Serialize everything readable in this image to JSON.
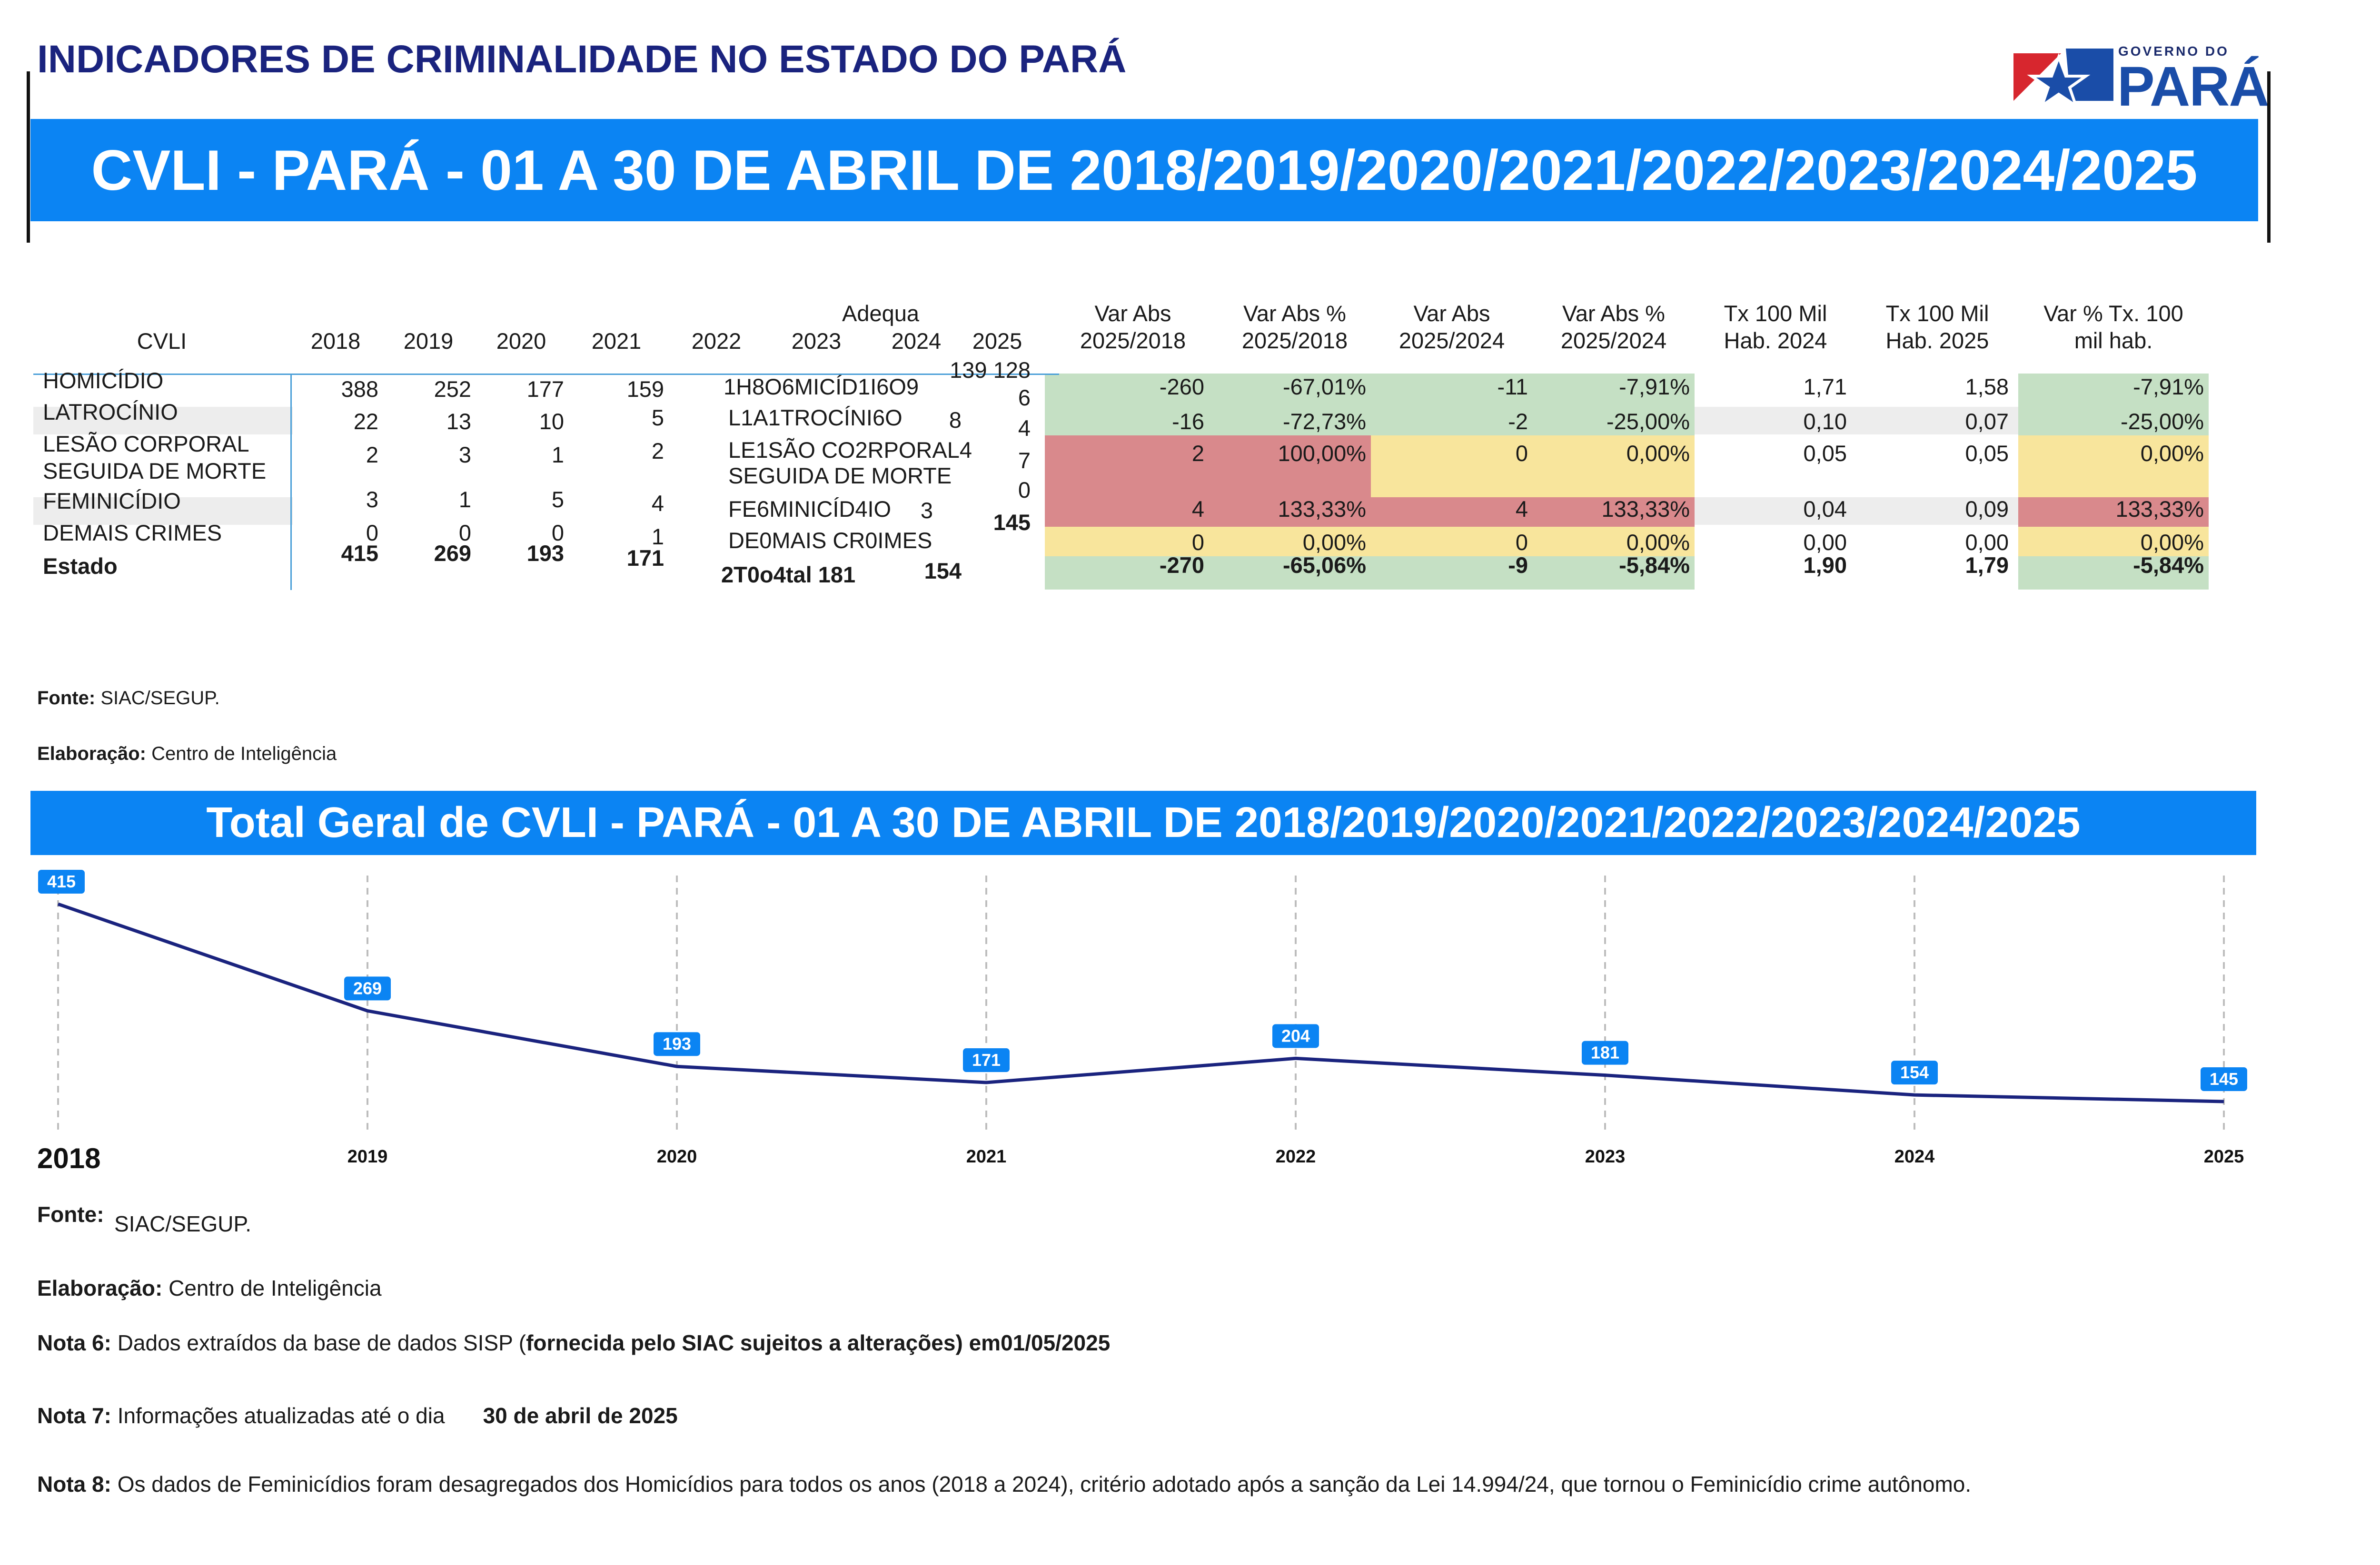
{
  "header": {
    "title": "INDICADORES DE CRIMINALIDADE NO ESTADO DO PARÁ",
    "logo_top": "GOVERNO DO",
    "logo_main": "PARÁ",
    "banner": "CVLI - PARÁ - 01 A 30 DE ABRIL DE 2018/2019/2020/2021/2022/2023/2024/2025"
  },
  "table": {
    "adequa_label": "Adequa",
    "columns": [
      "CVLI",
      "2018",
      "2019",
      "2020",
      "2021",
      "2022",
      "2023",
      "2024",
      "2025"
    ],
    "var_headers": [
      [
        "Var Abs",
        "2025/2018"
      ],
      [
        "Var Abs %",
        "2025/2018"
      ],
      [
        "Var Abs",
        "2025/2024"
      ],
      [
        "Var Abs %",
        "2025/2024"
      ],
      [
        "Tx 100 Mil",
        "Hab. 2024"
      ],
      [
        "Tx 100 Mil",
        "Hab. 2025"
      ],
      [
        "Var % Tx. 100",
        "mil hab."
      ]
    ],
    "rows": [
      {
        "label": "HOMICÍDIO",
        "label2": "",
        "y2018": "388",
        "y2019": "252",
        "y2020": "177",
        "y2021": "159",
        "garbled": "1H8O6MICÍD1I6O9",
        "extra": "139 128",
        "last": "6",
        "var": [
          "-260",
          "-67,01%",
          "-11",
          "-7,91%",
          "1,71",
          "1,58",
          "-7,91%"
        ]
      },
      {
        "label": "LATROCÍNIO",
        "label2": "",
        "y2018": "22",
        "y2019": "13",
        "y2020": "10",
        "y2021": "5",
        "garbled": "L1A1TROCÍNI6O",
        "extra": "8",
        "last": "4",
        "var": [
          "-16",
          "-72,73%",
          "-2",
          "-25,00%",
          "0,10",
          "0,07",
          "-25,00%"
        ]
      },
      {
        "label": "LESÃO CORPORAL",
        "label2": "SEGUIDA DE MORTE",
        "y2018": "2",
        "y2019": "3",
        "y2020": "1",
        "y2021": "2",
        "garbled": "LE1SÃO CO2RPORAL4",
        "garbled2": "SEGUIDA DE MORTE",
        "extra": "",
        "last": "7",
        "var": [
          "2",
          "100,00%",
          "0",
          "0,00%",
          "0,05",
          "0,05",
          "0,00%"
        ]
      },
      {
        "label": "FEMINICÍDIO",
        "label2": "",
        "y2018": "3",
        "y2019": "1",
        "y2020": "5",
        "y2021": "4",
        "garbled": "FE6MINICÍD4IO",
        "extra": "3",
        "last": "0",
        "var": [
          "4",
          "133,33%",
          "4",
          "133,33%",
          "0,04",
          "0,09",
          "133,33%"
        ]
      },
      {
        "label": "DEMAIS CRIMES",
        "label2": "",
        "y2018": "0",
        "y2019": "0",
        "y2020": "0",
        "y2021": "1",
        "garbled": "DE0MAIS CR0IMES",
        "extra": "",
        "last": "145",
        "var": [
          "0",
          "0,00%",
          "0",
          "0,00%",
          "0,00",
          "0,00",
          "0,00%"
        ]
      }
    ],
    "total": {
      "label": "Estado",
      "y2018": "415",
      "y2019": "269",
      "y2020": "193",
      "y2021": "171",
      "garbled": "2T0o4tal 181",
      "y2024": "154",
      "var": [
        "-270",
        "-65,06%",
        "-9",
        "-5,84%",
        "1,90",
        "1,79",
        "-5,84%"
      ]
    }
  },
  "sources1": {
    "fonte_label": "Fonte:",
    "fonte_value": "SIAC/SEGUP.",
    "elab_label": "Elaboração:",
    "elab_value": "Centro de Inteligência"
  },
  "chart_banner": "Total Geral de CVLI - PARÁ - 01 A 30 DE ABRIL DE 2018/2019/2020/2021/2022/2023/2024/2025",
  "chart_data": {
    "type": "line",
    "title": "Total Geral de CVLI - PARÁ - 01 A 30 DE ABRIL DE 2018/2019/2020/2021/2022/2023/2024/2025",
    "x": [
      "2018",
      "2019",
      "2020",
      "2021",
      "2022",
      "2023",
      "2024",
      "2025"
    ],
    "values": [
      415,
      269,
      193,
      171,
      204,
      181,
      154,
      145
    ],
    "grid": "vertical dashed",
    "colors": {
      "line": "#1a237e",
      "label": "#0b84f3"
    }
  },
  "notes": {
    "fonte_label": "Fonte:",
    "fonte_value": "SIAC/SEGUP.",
    "elab_label": "Elaboração:",
    "elab_value": "Centro de Inteligência",
    "n6_label": "Nota 6:",
    "n6_text": "Dados extraídos da base de dados SISP (",
    "n6_bold": "fornecida pelo SIAC sujeitos a alterações",
    "n6_end": ") em01/05/2025",
    "n7_label": "Nota 7:",
    "n7_text": "Informações atualizadas até o dia",
    "n7_date": "30 de abril de 2025",
    "n8_label": "Nota 8:",
    "n8_text": "Os dados de Feminicídios foram desagregados dos Homicídios para todos os anos (2018 a 2024), critério adotado após a sanção da Lei 14.994/24, que tornou o Feminicídio crime autônomo."
  },
  "colors": {
    "banner": "#0b84f3",
    "title": "#1a237e",
    "green": "#c5e0c4",
    "red": "#d9898c",
    "yellow": "#f8e59c"
  }
}
